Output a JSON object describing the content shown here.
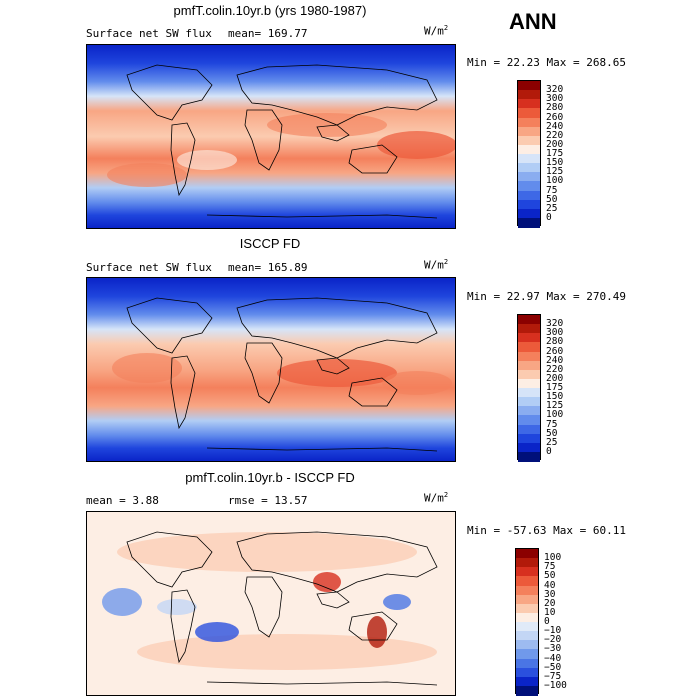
{
  "season": "ANN",
  "panels": [
    {
      "title": "pmfT.colin.10yr.b (yrs 1980-1987)",
      "field": "Surface net SW flux",
      "stat": "mean= 169.77",
      "units": "W/m",
      "units_sup": "2",
      "minmax": "Min =  22.23 Max = 268.65",
      "mode": "abs"
    },
    {
      "title": "ISCCP FD",
      "field": "Surface net SW flux",
      "stat": "mean= 165.89",
      "units": "W/m",
      "units_sup": "2",
      "minmax": "Min =  22.97 Max = 270.49",
      "mode": "abs"
    },
    {
      "title": "pmfT.colin.10yr.b - ISCCP FD",
      "field": "mean =   3.88",
      "stat": "rmse =  13.57",
      "units": "W/m",
      "units_sup": "2",
      "minmax": "Min = -57.63 Max =  60.11",
      "mode": "diff"
    }
  ],
  "colorbar_abs": {
    "labels": [
      "320",
      "300",
      "280",
      "260",
      "240",
      "220",
      "200",
      "175",
      "150",
      "125",
      "100",
      "75",
      "50",
      "25",
      "0"
    ],
    "colors": [
      "#8b0000",
      "#b21a0a",
      "#d7301f",
      "#ec5a3a",
      "#f4805c",
      "#f8a684",
      "#fbcbb0",
      "#fdeee4",
      "#d6e4f8",
      "#b1cdf5",
      "#8aadf0",
      "#628cec",
      "#3e68e6",
      "#1f45dd",
      "#0a24c8",
      "#00107a"
    ]
  },
  "colorbar_diff": {
    "labels": [
      "100",
      "75",
      "50",
      "40",
      "30",
      "20",
      "10",
      "0",
      "−10",
      "−20",
      "−30",
      "−40",
      "−50",
      "−75",
      "−100"
    ],
    "colors": [
      "#8b0000",
      "#b21a0a",
      "#d7301f",
      "#ec5a3a",
      "#f4805c",
      "#f8a684",
      "#fbcbb0",
      "#fdeee4",
      "#e0eaf8",
      "#c3d6f5",
      "#9dbbf0",
      "#7099eb",
      "#4a75e5",
      "#2a50de",
      "#0a24c8",
      "#00107a"
    ]
  }
}
